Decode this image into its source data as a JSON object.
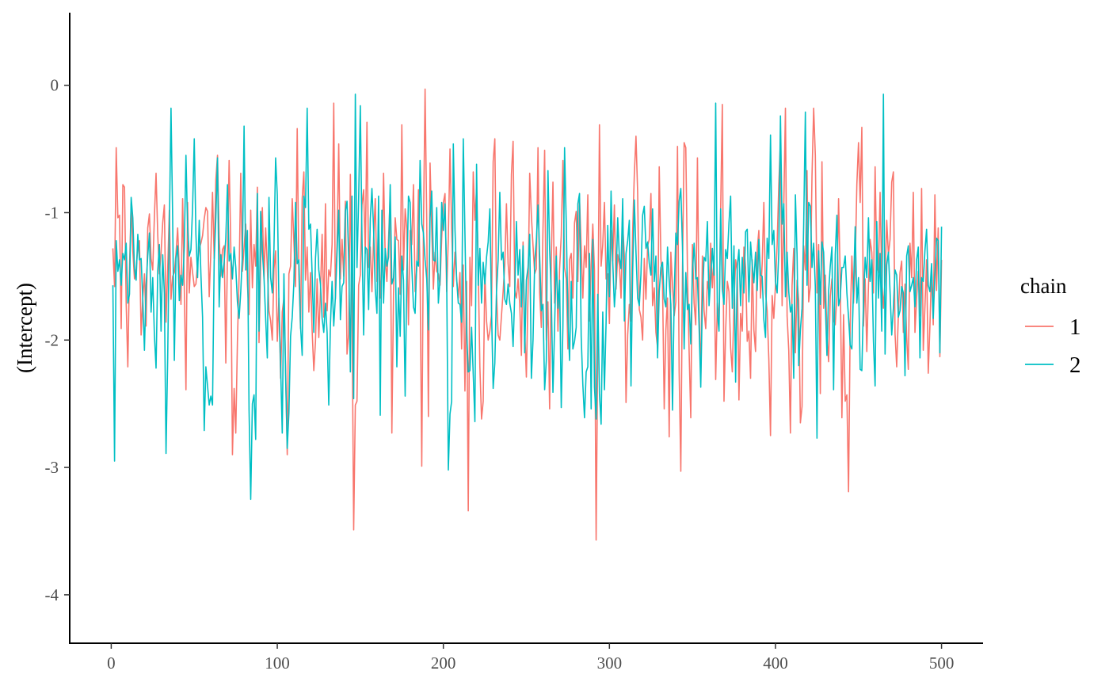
{
  "chart_data": {
    "type": "line",
    "title": "",
    "xlabel": "",
    "ylabel": "(Intercept)",
    "xlim": [
      -25,
      525
    ],
    "ylim": [
      -4.38,
      0.57
    ],
    "xticks": [
      0,
      100,
      200,
      300,
      400,
      500
    ],
    "yticks": [
      0,
      -1,
      -2,
      -3,
      -4
    ],
    "grid": false,
    "legend": {
      "title": "chain",
      "position": "right"
    },
    "series": [
      {
        "name": "1",
        "color": "#F8766D",
        "x_start": 1,
        "values": [
          -1.28,
          -1.58,
          -0.49,
          -1.04,
          -1.02,
          -1.91,
          -0.78,
          -0.8,
          -1.71,
          -2.21,
          -1.43,
          -0.93,
          -1.3,
          -1.52,
          -1.44,
          -1.27,
          -1.22,
          -1.96,
          -1.67,
          -1.48,
          -1.89,
          -1.12,
          -1.01,
          -1.36,
          -1.45,
          -1.03,
          -0.69,
          -1.17,
          -1.48,
          -1.32,
          -1.08,
          -0.94,
          -1.86,
          -1.45,
          -0.98,
          -1.68,
          -1.5,
          -1.47,
          -1.32,
          -1.12,
          -1.45,
          -1.72,
          -0.89,
          -1.59,
          -2.39,
          -0.92,
          -1.63,
          -1.35,
          -1.47,
          -1.58,
          -1.56,
          -1.4,
          -1.28,
          -1.24,
          -1.18,
          -1.05,
          -0.96,
          -0.99,
          -1.66,
          -1.31,
          -0.84,
          -1.36,
          -0.74,
          -0.55,
          -1.19,
          -1.5,
          -1.29,
          -1.26,
          -2.18,
          -1.33,
          -0.59,
          -1.26,
          -2.9,
          -2.38,
          -2.73,
          -2.01,
          -1.5,
          -0.69,
          -1.46,
          -1.27,
          -1.09,
          -1.56,
          -1.8,
          -0.98,
          -1.59,
          -1.25,
          -1.42,
          -0.8,
          -2.02,
          -1.4,
          -0.96,
          -1.52,
          -1.12,
          -1.43,
          -1.77,
          -1.85,
          -2.0,
          -1.44,
          -1.3,
          -2.01,
          -1.67,
          -2.3,
          -1.78,
          -1.67,
          -2.2,
          -2.9,
          -1.48,
          -1.42,
          -0.89,
          -1.23,
          -1.58,
          -0.34,
          -1.49,
          -1.91,
          -0.89,
          -0.68,
          -1.53,
          -1.27,
          -1.78,
          -1.47,
          -1.93,
          -2.24,
          -2.01,
          -1.52,
          -1.98,
          -1.62,
          -1.17,
          -1.82,
          -0.93,
          -1.77,
          -1.45,
          -1.5,
          -1.25,
          -0.14,
          -1.68,
          -1.23,
          -0.46,
          -1.52,
          -1.21,
          -1.5,
          -0.91,
          -2.11,
          -1.95,
          -0.7,
          -1.72,
          -3.49,
          -2.51,
          -2.48,
          -1.57,
          -1.49,
          -0.94,
          -0.82,
          -1.32,
          -0.29,
          -1.43,
          -1.27,
          -1.62,
          -1.2,
          -0.89,
          -1.54,
          -1.05,
          -1.67,
          -1.43,
          -0.69,
          -1.36,
          -1.54,
          -1.21,
          -0.86,
          -2.73,
          -1.63,
          -1.04,
          -1.21,
          -1.22,
          -1.64,
          -0.31,
          -1.45,
          -0.97,
          -1.13,
          -1.88,
          -1.14,
          -1.25,
          -0.78,
          -1.62,
          -1.44,
          -0.82,
          -1.5,
          -2.99,
          -1.14,
          -0.03,
          -1.06,
          -2.6,
          -0.61,
          -1.12,
          -1.6,
          -1.31,
          -1.46,
          -1.48,
          -1.57,
          -1.2,
          -0.92,
          -0.85,
          -1.62,
          -1.2,
          -0.5,
          -1.12,
          -1.58,
          -1.31,
          -1.52,
          -1.67,
          -1.47,
          -2.07,
          -1.41,
          -2.4,
          -1.54,
          -3.34,
          -1.35,
          -1.73,
          -0.68,
          -1.06,
          -0.81,
          -1.43,
          -2.21,
          -2.62,
          -2.48,
          -1.48,
          -1.85,
          -2.0,
          -1.93,
          -1.8,
          -0.6,
          -0.42,
          -1.63,
          -1.96,
          -2.0,
          -1.81,
          -1.62,
          -1.41,
          -0.93,
          -1.4,
          -1.58,
          -0.7,
          -0.44,
          -1.61,
          -1.67,
          -1.52,
          -1.72,
          -2.12,
          -1.23,
          -1.92,
          -2.29,
          -1.63,
          -0.69,
          -1.02,
          -1.26,
          -1.48,
          -1.44,
          -0.49,
          -1.63,
          -1.9,
          -1.13,
          -0.51,
          -2.0,
          -1.7,
          -2.54,
          -1.38,
          -0.76,
          -1.71,
          -1.27,
          -1.93,
          -1.44,
          -1.18,
          -0.59,
          -1.43,
          -1.52,
          -2.07,
          -1.37,
          -1.32,
          -1.67,
          -1.08,
          -0.99,
          -1.54,
          -0.89,
          -1.27,
          -1.67,
          -1.26,
          -1.43,
          -0.86,
          -1.85,
          -1.41,
          -1.09,
          -1.45,
          -3.57,
          -2.02,
          -0.31,
          -1.42,
          -1.25,
          -0.92,
          -1.52,
          -1.48,
          -1.87,
          -1.14,
          -1.38,
          -0.94,
          -1.6,
          -1.33,
          -1.41,
          -1.67,
          -1.09,
          -1.34,
          -2.49,
          -1.96,
          -1.72,
          -1.85,
          -1.15,
          -0.7,
          -0.4,
          -0.84,
          -1.76,
          -1.82,
          -2.0,
          -1.36,
          -1.68,
          -1.26,
          -1.21,
          -0.85,
          -1.73,
          -1.59,
          -1.94,
          -2.06,
          -0.64,
          -1.36,
          -1.57,
          -2.54,
          -1.92,
          -1.67,
          -2.76,
          -1.31,
          -1.57,
          -1.81,
          -1.7,
          -0.48,
          -2.25,
          -3.03,
          -1.44,
          -0.45,
          -0.49,
          -1.46,
          -2.09,
          -2.61,
          -1.25,
          -1.71,
          -1.88,
          -0.57,
          -1.74,
          -2.31,
          -1.34,
          -1.77,
          -1.91,
          -1.54,
          -1.62,
          -1.24,
          -1.59,
          -1.34,
          -2.31,
          -1.71,
          -1.86,
          -0.97,
          -0.15,
          -2.48,
          -1.93,
          -1.54,
          -1.62,
          -2.06,
          -2.25,
          -1.73,
          -1.37,
          -1.46,
          -2.47,
          -1.79,
          -1.93,
          -1.27,
          -1.43,
          -2.01,
          -1.93,
          -2.3,
          -1.37,
          -1.92,
          -2.09,
          -1.29,
          -1.14,
          -1.67,
          -1.4,
          -0.92,
          -1.63,
          -1.77,
          -2.15,
          -2.75,
          -1.65,
          -1.83,
          -1.57,
          -1.25,
          -0.78,
          -0.44,
          -1.73,
          -0.95,
          -0.18,
          -1.81,
          -2.08,
          -2.73,
          -1.57,
          -1.28,
          -2.1,
          -1.53,
          -1.69,
          -2.65,
          -2.52,
          -1.26,
          -1.45,
          -0.67,
          -1.7,
          -1.58,
          -0.71,
          -0.18,
          -0.55,
          -1.63,
          -1.25,
          -2.42,
          -0.6,
          -1.75,
          -1.49,
          -1.96,
          -2.17,
          -1.66,
          -1.52,
          -1.85,
          -1.88,
          -1.65,
          -0.89,
          -1.52,
          -2.61,
          -1.8,
          -2.48,
          -2.43,
          -3.19,
          -1.88,
          -1.34,
          -1.71,
          -1.42,
          -0.78,
          -0.45,
          -0.92,
          -0.33,
          -1.89,
          -1.52,
          -2.09,
          -1.57,
          -1.21,
          -1.31,
          -1.63,
          -0.64,
          -1.43,
          -1.47,
          -0.84,
          -1.52,
          -1.75,
          -1.53,
          -1.06,
          -1.33,
          -1.21,
          -0.76,
          -0.68,
          -1.95,
          -2.21,
          -1.8,
          -1.47,
          -1.38,
          -1.94,
          -1.56,
          -1.98,
          -2.23,
          -1.24,
          -1.51,
          -0.84,
          -1.94,
          -1.67,
          -1.46,
          -1.81,
          -0.81,
          -2.08,
          -1.74,
          -1.37,
          -2.26,
          -1.89,
          -1.43,
          -1.88,
          -0.86,
          -1.61,
          -1.12,
          -2.13,
          -1.37
        ]
      },
      {
        "name": "2",
        "color": "#00BFC4",
        "x_start": 1,
        "values": [
          -1.57,
          -2.95,
          -1.22,
          -1.46,
          -1.37,
          -1.57,
          -1.32,
          -1.37,
          -1.24,
          -1.71,
          -1.64,
          -0.88,
          -1.04,
          -1.44,
          -1.53,
          -1.17,
          -1.37,
          -1.36,
          -1.68,
          -2.08,
          -1.57,
          -1.34,
          -1.16,
          -1.78,
          -1.51,
          -1.96,
          -2.22,
          -1.46,
          -1.25,
          -1.93,
          -1.33,
          -1.63,
          -2.89,
          -2.14,
          -1.12,
          -0.18,
          -1.05,
          -2.16,
          -1.36,
          -1.26,
          -1.69,
          -1.49,
          -1.57,
          -1.27,
          -0.55,
          -1.12,
          -1.34,
          -1.29,
          -0.96,
          -0.42,
          -1.17,
          -1.51,
          -1.06,
          -1.48,
          -1.82,
          -2.71,
          -2.21,
          -2.36,
          -2.51,
          -2.44,
          -2.51,
          -1.38,
          -1.04,
          -0.57,
          -1.74,
          -1.33,
          -1.51,
          -1.39,
          -1.2,
          -0.78,
          -1.38,
          -1.32,
          -1.52,
          -1.27,
          -1.43,
          -1.7,
          -1.83,
          -1.62,
          -1.33,
          -0.32,
          -1.45,
          -1.14,
          -2.55,
          -3.25,
          -2.5,
          -2.43,
          -2.78,
          -0.85,
          -1.93,
          -0.99,
          -1.3,
          -1.51,
          -1.83,
          -2.14,
          -0.88,
          -1.51,
          -1.63,
          -1.28,
          -0.57,
          -0.86,
          -1.71,
          -2.21,
          -2.73,
          -1.48,
          -2.28,
          -2.85,
          -2.57,
          -1.97,
          -1.82,
          -1.55,
          -0.92,
          -1.4,
          -1.37,
          -1.89,
          -2.12,
          -0.87,
          -0.96,
          -0.18,
          -1.13,
          -1.09,
          -1.49,
          -1.94,
          -1.36,
          -1.13,
          -1.45,
          -1.56,
          -1.83,
          -1.94,
          -1.71,
          -1.94,
          -2.51,
          -1.88,
          -1.54,
          -1.89,
          -1.66,
          -1.31,
          -0.98,
          -1.84,
          -1.58,
          -1.55,
          -0.99,
          -0.91,
          -1.36,
          -2.25,
          -0.87,
          -2.46,
          -0.07,
          -1.43,
          -0.89,
          -0.16,
          -1.2,
          -1.96,
          -1.27,
          -1.29,
          -1.76,
          -1.05,
          -0.81,
          -1.13,
          -1.6,
          -1.79,
          -0.87,
          -2.59,
          -0.98,
          -1.71,
          -1.28,
          -1.42,
          -1.35,
          -0.78,
          -1.56,
          -1.51,
          -1.19,
          -2.21,
          -1.59,
          -1.97,
          -1.34,
          -1.53,
          -2.44,
          -1.52,
          -0.87,
          -0.92,
          -1.42,
          -1.74,
          -1.79,
          -1.38,
          -1.42,
          -0.59,
          -1.09,
          -1.16,
          -1.37,
          -1.52,
          -1.92,
          -1.04,
          -0.83,
          -1.37,
          -1.38,
          -0.96,
          -1.71,
          -1.52,
          -0.92,
          -1.14,
          -0.93,
          -1.5,
          -3.02,
          -2.58,
          -2.48,
          -0.46,
          -1.13,
          -1.52,
          -1.71,
          -1.72,
          -1.86,
          -0.42,
          -1.16,
          -1.92,
          -2.25,
          -2.24,
          -1.9,
          -2.27,
          -2.64,
          -0.62,
          -1.57,
          -1.28,
          -1.71,
          -1.39,
          -1.56,
          -1.35,
          -1.23,
          -0.97,
          -1.76,
          -2.38,
          -2.18,
          -1.62,
          -1.37,
          -0.84,
          -1.37,
          -1.31,
          -1.68,
          -1.72,
          -1.56,
          -1.71,
          -1.79,
          -2.05,
          -1.64,
          -1.07,
          -1.49,
          -1.29,
          -1.74,
          -1.26,
          -2.1,
          -1.53,
          -1.43,
          -1.17,
          -2.3,
          -2.0,
          -1.39,
          -1.22,
          -0.94,
          -1.34,
          -1.77,
          -1.72,
          -2.39,
          -2.16,
          -0.67,
          -1.29,
          -1.64,
          -2.41,
          -1.89,
          -1.34,
          -1.75,
          -1.53,
          -2.53,
          -1.89,
          -0.49,
          -1.08,
          -1.81,
          -2.16,
          -1.54,
          -2.07,
          -2.01,
          -1.9,
          -0.93,
          -0.85,
          -1.97,
          -2.35,
          -2.61,
          -2.25,
          -2.21,
          -1.32,
          -2.54,
          -1.21,
          -2.37,
          -2.62,
          -1.64,
          -2.42,
          -2.66,
          -1.78,
          -2.39,
          -1.86,
          -1.1,
          -1.66,
          -0.83,
          -1.38,
          -1.74,
          -1.54,
          -1.04,
          -1.35,
          -1.44,
          -0.89,
          -1.85,
          -1.32,
          -1.22,
          -1.06,
          -2.36,
          -1.46,
          -0.9,
          -1.31,
          -1.67,
          -1.73,
          -1.48,
          -1.02,
          -0.95,
          -1.28,
          -1.23,
          -1.4,
          -1.49,
          -0.97,
          -1.54,
          -1.34,
          -2.14,
          -1.62,
          -1.43,
          -1.39,
          -1.68,
          -1.74,
          -1.27,
          -1.54,
          -1.72,
          -2.55,
          -1.67,
          -1.16,
          -1.25,
          -0.91,
          -0.81,
          -1.27,
          -2.07,
          -1.47,
          -1.76,
          -1.72,
          -2.03,
          -1.47,
          -1.24,
          -1.52,
          -1.51,
          -1.89,
          -2.37,
          -1.68,
          -1.35,
          -1.38,
          -1.07,
          -1.73,
          -1.52,
          -1.28,
          -1.49,
          -0.14,
          -1.79,
          -1.93,
          -0.97,
          -1.6,
          -1.72,
          -1.29,
          -1.36,
          -1.08,
          -0.87,
          -1.75,
          -1.26,
          -2.33,
          -1.42,
          -1.29,
          -1.73,
          -1.35,
          -1.63,
          -1.15,
          -1.13,
          -1.7,
          -1.23,
          -1.41,
          -1.55,
          -1.31,
          -1.61,
          -1.21,
          -1.49,
          -1.5,
          -1.84,
          -1.98,
          -1.2,
          -1.36,
          -0.39,
          -1.25,
          -1.14,
          -1.54,
          -1.63,
          -1.31,
          -0.24,
          -1.09,
          -0.93,
          -1.66,
          -1.31,
          -1.62,
          -1.78,
          -1.72,
          -2.3,
          -0.86,
          -1.33,
          -2.2,
          -1.92,
          -1.75,
          -1.09,
          -0.21,
          -1.57,
          -0.92,
          -0.95,
          -1.43,
          -1.24,
          -1.58,
          -2.77,
          -1.3,
          -1.72,
          -1.23,
          -1.31,
          -1.71,
          -2.12,
          -1.62,
          -1.42,
          -1.27,
          -2.39,
          -1.33,
          -1.02,
          -1.73,
          -1.67,
          -1.43,
          -1.43,
          -1.34,
          -1.63,
          -1.82,
          -2.04,
          -2.07,
          -1.59,
          -1.11,
          -1.71,
          -1.51,
          -2.23,
          -2.24,
          -1.7,
          -1.35,
          -1.51,
          -1.04,
          -1.54,
          -1.37,
          -2.01,
          -2.36,
          -1.07,
          -1.67,
          -1.32,
          -1.93,
          -0.07,
          -2.11,
          -1.41,
          -1.31,
          -1.62,
          -1.96,
          -1.75,
          -1.45,
          -1.49,
          -1.82,
          -1.77,
          -1.58,
          -1.63,
          -2.28,
          -1.34,
          -1.26,
          -1.62,
          -1.57,
          -1.51,
          -1.74,
          -1.37,
          -1.27,
          -2.14,
          -1.51,
          -1.54,
          -1.3,
          -1.13,
          -1.57,
          -1.62,
          -1.4,
          -1.83,
          -1.49,
          -1.2,
          -1.22,
          -2.1,
          -1.11
        ]
      }
    ]
  }
}
